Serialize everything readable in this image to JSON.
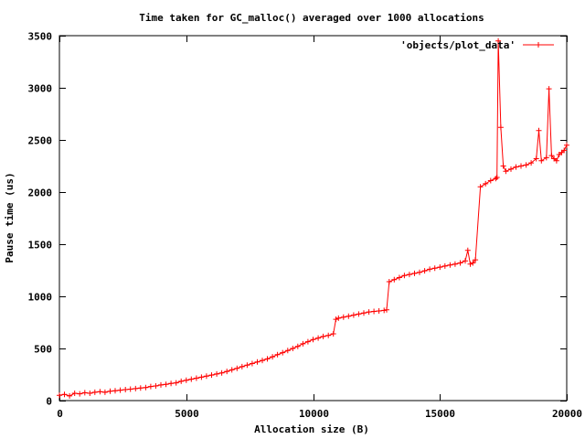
{
  "chart_data": {
    "type": "line",
    "title": "Time taken for GC_malloc() averaged over 1000 allocations",
    "xlabel": "Allocation size (B)",
    "ylabel": "Pause time (us)",
    "xlim": [
      0,
      20000
    ],
    "ylim": [
      0,
      3500
    ],
    "xticks": [
      0,
      5000,
      10000,
      15000,
      20000
    ],
    "yticks": [
      0,
      500,
      1000,
      1500,
      2000,
      2500,
      3000,
      3500
    ],
    "grid": false,
    "legend_position": "top-right",
    "marker": "plus",
    "series": [
      {
        "name": "'objects/plot_data'",
        "color": "#ff0000",
        "x": [
          0,
          200,
          400,
          600,
          800,
          1000,
          1200,
          1400,
          1600,
          1800,
          2000,
          2200,
          2400,
          2600,
          2800,
          3000,
          3200,
          3400,
          3600,
          3800,
          4000,
          4200,
          4400,
          4600,
          4800,
          5000,
          5200,
          5400,
          5600,
          5800,
          6000,
          6200,
          6400,
          6600,
          6800,
          7000,
          7200,
          7400,
          7600,
          7800,
          8000,
          8200,
          8400,
          8600,
          8800,
          9000,
          9200,
          9400,
          9600,
          9800,
          10000,
          10200,
          10400,
          10600,
          10800,
          10900,
          11000,
          11200,
          11400,
          11600,
          11800,
          12000,
          12200,
          12400,
          12600,
          12800,
          12900,
          13000,
          13200,
          13400,
          13600,
          13800,
          14000,
          14200,
          14400,
          14600,
          14800,
          15000,
          15200,
          15400,
          15600,
          15800,
          16000,
          16100,
          16200,
          16300,
          16400,
          16600,
          16800,
          17000,
          17200,
          17250,
          17300,
          17400,
          17500,
          17600,
          17800,
          18000,
          18200,
          18400,
          18600,
          18800,
          18900,
          19000,
          19200,
          19300,
          19400,
          19500,
          19600,
          19700,
          19800,
          19900,
          20000
        ],
        "y": [
          50,
          60,
          45,
          70,
          65,
          75,
          70,
          80,
          85,
          80,
          90,
          95,
          100,
          105,
          110,
          115,
          120,
          125,
          135,
          140,
          150,
          155,
          165,
          170,
          185,
          195,
          205,
          215,
          225,
          235,
          245,
          255,
          265,
          280,
          295,
          310,
          325,
          340,
          355,
          370,
          385,
          400,
          420,
          440,
          460,
          480,
          500,
          520,
          545,
          565,
          585,
          600,
          615,
          625,
          640,
          780,
          790,
          800,
          810,
          820,
          830,
          840,
          850,
          855,
          860,
          865,
          870,
          1140,
          1160,
          1180,
          1200,
          1210,
          1220,
          1230,
          1245,
          1260,
          1270,
          1280,
          1290,
          1300,
          1310,
          1320,
          1340,
          1440,
          1310,
          1320,
          1350,
          2050,
          2080,
          2110,
          2130,
          2140,
          3450,
          2620,
          2250,
          2200,
          2220,
          2240,
          2250,
          2260,
          2280,
          2320,
          2590,
          2300,
          2330,
          2990,
          2350,
          2320,
          2300,
          2360,
          2380,
          2400,
          2450
        ]
      }
    ]
  }
}
